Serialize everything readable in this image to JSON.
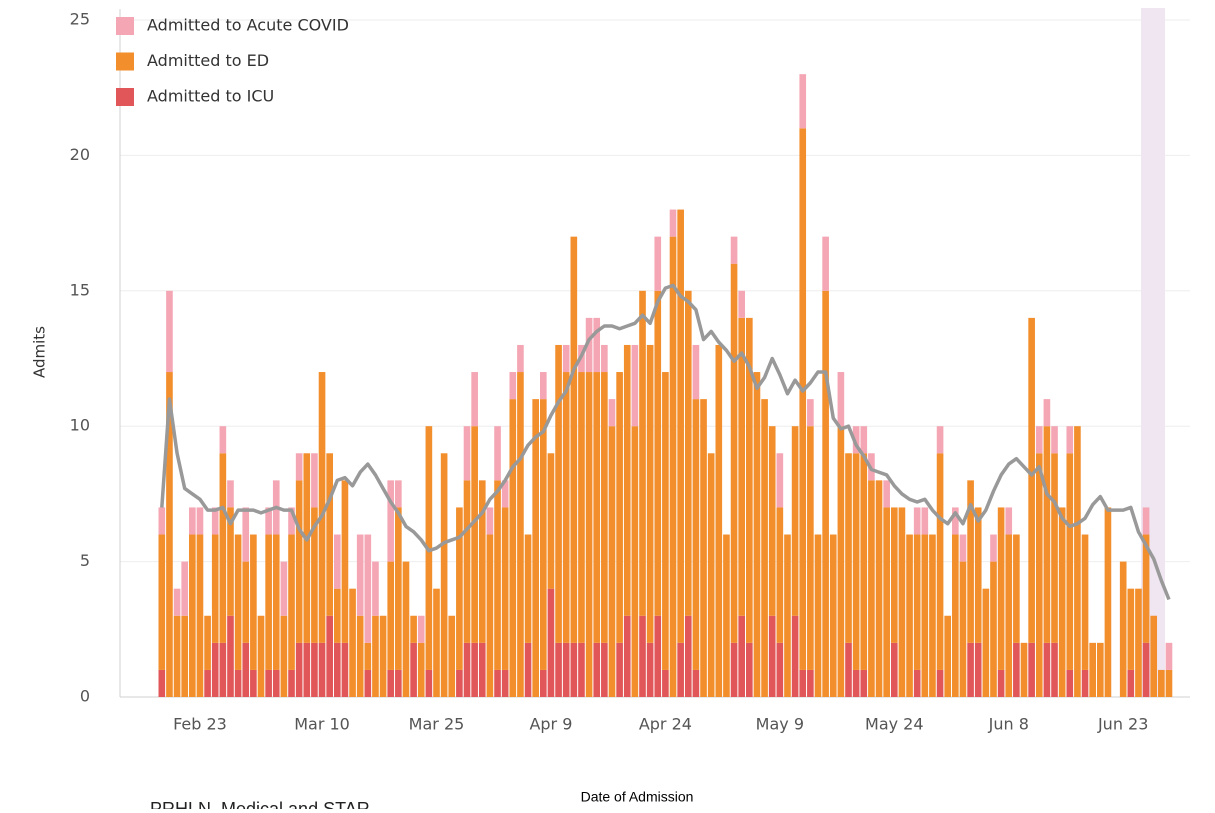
{
  "chart_data": {
    "type": "bar",
    "x_label": "Date of Admission",
    "y_label": "Admits",
    "footnote": "PRHLN, Medical and STAR",
    "categories": [
      null,
      null,
      null,
      null,
      null,
      "Feb 23",
      null,
      null,
      null,
      null,
      null,
      null,
      null,
      null,
      null,
      null,
      null,
      null,
      null,
      null,
      null,
      "Mar 10",
      null,
      null,
      null,
      null,
      null,
      null,
      null,
      null,
      null,
      null,
      null,
      null,
      null,
      null,
      "Mar 25",
      null,
      null,
      null,
      null,
      null,
      null,
      null,
      null,
      null,
      null,
      null,
      null,
      null,
      null,
      "Apr 9",
      null,
      null,
      null,
      null,
      null,
      null,
      null,
      null,
      null,
      null,
      null,
      null,
      null,
      null,
      "Apr 24",
      null,
      null,
      null,
      null,
      null,
      null,
      null,
      null,
      null,
      null,
      null,
      null,
      null,
      null,
      "May 9",
      null,
      null,
      null,
      null,
      null,
      null,
      null,
      null,
      null,
      null,
      null,
      null,
      null,
      null,
      "May 24",
      null,
      null,
      null,
      null,
      null,
      null,
      null,
      null,
      null,
      null,
      null,
      null,
      null,
      null,
      "Jun 8",
      null,
      null,
      null,
      null,
      null,
      null,
      null,
      null,
      null,
      null,
      null,
      null,
      null,
      null,
      "Jun 23",
      null,
      null,
      null,
      null,
      null,
      null
    ],
    "series": [
      {
        "name": "Admitted to Acute COVID",
        "color": "#f4a6b4",
        "values": [
          1,
          3,
          1,
          2,
          1,
          1,
          0,
          1,
          1,
          1,
          0,
          2,
          0,
          0,
          1,
          2,
          2,
          1,
          1,
          0,
          2,
          0,
          0,
          2,
          0,
          0,
          3,
          4,
          2,
          0,
          3,
          1,
          0,
          0,
          1,
          0,
          0,
          0,
          0,
          0,
          2,
          2,
          0,
          1,
          2,
          1,
          1,
          1,
          0,
          0,
          1,
          0,
          0,
          1,
          0,
          1,
          2,
          2,
          1,
          1,
          0,
          0,
          3,
          0,
          0,
          2,
          0,
          1,
          0,
          0,
          2,
          0,
          0,
          0,
          0,
          1,
          1,
          0,
          0,
          0,
          0,
          2,
          0,
          0,
          2,
          1,
          0,
          2,
          0,
          2,
          0,
          1,
          1,
          1,
          0,
          1,
          0,
          0,
          0,
          1,
          1,
          0,
          1,
          0,
          1,
          1,
          0,
          0,
          0,
          1,
          0,
          1,
          0,
          0,
          0,
          1,
          1,
          1,
          0,
          1,
          0,
          0,
          0,
          0,
          0,
          0,
          0,
          0,
          0,
          1,
          0,
          0,
          1
        ]
      },
      {
        "name": "Admitted to ED",
        "color": "#f28e2b",
        "values": [
          5,
          12,
          3,
          3,
          6,
          6,
          2,
          4,
          7,
          4,
          5,
          3,
          5,
          3,
          5,
          5,
          3,
          5,
          6,
          7,
          5,
          10,
          6,
          2,
          6,
          4,
          3,
          1,
          3,
          3,
          4,
          6,
          5,
          1,
          2,
          9,
          4,
          9,
          3,
          6,
          6,
          8,
          6,
          6,
          7,
          6,
          11,
          12,
          4,
          11,
          10,
          5,
          11,
          10,
          15,
          10,
          12,
          10,
          10,
          10,
          10,
          10,
          10,
          12,
          11,
          12,
          11,
          17,
          16,
          12,
          10,
          11,
          9,
          13,
          6,
          14,
          11,
          12,
          12,
          11,
          7,
          5,
          6,
          7,
          20,
          9,
          6,
          15,
          6,
          10,
          7,
          8,
          8,
          8,
          8,
          7,
          5,
          7,
          6,
          5,
          6,
          6,
          8,
          3,
          6,
          5,
          6,
          5,
          4,
          5,
          6,
          6,
          4,
          2,
          12,
          9,
          8,
          7,
          7,
          8,
          10,
          5,
          2,
          2,
          7,
          0,
          5,
          3,
          4,
          4,
          3,
          1,
          1
        ]
      },
      {
        "name": "Admitted to ICU",
        "color": "#e15759",
        "values": [
          1,
          0,
          0,
          0,
          0,
          0,
          1,
          2,
          2,
          3,
          1,
          2,
          1,
          0,
          1,
          1,
          0,
          1,
          2,
          2,
          2,
          2,
          3,
          2,
          2,
          0,
          0,
          1,
          0,
          0,
          1,
          1,
          0,
          2,
          0,
          1,
          0,
          0,
          0,
          1,
          2,
          2,
          2,
          0,
          1,
          1,
          0,
          0,
          2,
          0,
          1,
          4,
          2,
          2,
          2,
          2,
          0,
          2,
          2,
          0,
          2,
          3,
          0,
          3,
          2,
          3,
          1,
          0,
          2,
          3,
          1,
          0,
          0,
          0,
          0,
          2,
          3,
          2,
          0,
          0,
          3,
          2,
          0,
          3,
          1,
          1,
          0,
          0,
          0,
          0,
          2,
          1,
          1,
          0,
          0,
          0,
          2,
          0,
          0,
          1,
          0,
          0,
          1,
          0,
          0,
          0,
          2,
          2,
          0,
          0,
          1,
          0,
          2,
          0,
          2,
          0,
          2,
          2,
          0,
          1,
          0,
          1,
          0,
          0,
          0,
          0,
          0,
          1,
          0,
          2,
          0,
          0,
          0
        ]
      },
      {
        "type": "line",
        "color": "#999999",
        "values": [
          7,
          11,
          9,
          7.7,
          7.5,
          7.3,
          6.9,
          6.9,
          7.0,
          6.4,
          6.9,
          6.9,
          6.9,
          6.8,
          6.9,
          7.0,
          6.9,
          6.9,
          6.2,
          5.8,
          6.3,
          6.7,
          7.3,
          8.0,
          8.1,
          7.8,
          8.3,
          8.6,
          8.2,
          7.7,
          7.2,
          6.8,
          6.3,
          6.1,
          5.8,
          5.4,
          5.5,
          5.7,
          5.8,
          5.9,
          6.2,
          6.5,
          6.8,
          7.3,
          7.6,
          8.0,
          8.5,
          8.8,
          9.3,
          9.6,
          9.8,
          10.4,
          10.9,
          11.3,
          12.1,
          12.6,
          13.2,
          13.5,
          13.7,
          13.7,
          13.6,
          13.7,
          13.8,
          14.1,
          13.8,
          14.6,
          15.1,
          15.2,
          14.8,
          14.6,
          14.3,
          13.2,
          13.5,
          13.1,
          12.8,
          12.4,
          12.7,
          12.2,
          11.4,
          11.8,
          12.5,
          11.9,
          11.2,
          11.7,
          11.3,
          11.6,
          12.0,
          12.0,
          10.3,
          9.9,
          10.0,
          9.3,
          8.9,
          8.4,
          8.3,
          8.2,
          7.8,
          7.5,
          7.3,
          7.2,
          7.3,
          6.9,
          6.6,
          6.4,
          6.8,
          6.4,
          7.1,
          6.5,
          6.9,
          7.6,
          8.2,
          8.6,
          8.8,
          8.5,
          8.2,
          8.5,
          7.5,
          7.2,
          6.6,
          6.3,
          6.4,
          6.6,
          7.1,
          7.4,
          6.9,
          6.9,
          6.9,
          7.0,
          6.1,
          5.6,
          5.1,
          4.3,
          3.6
        ]
      }
    ],
    "ylim": [
      0,
      25.4
    ],
    "yticks": [
      0,
      5,
      10,
      15,
      20,
      25
    ],
    "grid": true,
    "legend": "top-left"
  }
}
